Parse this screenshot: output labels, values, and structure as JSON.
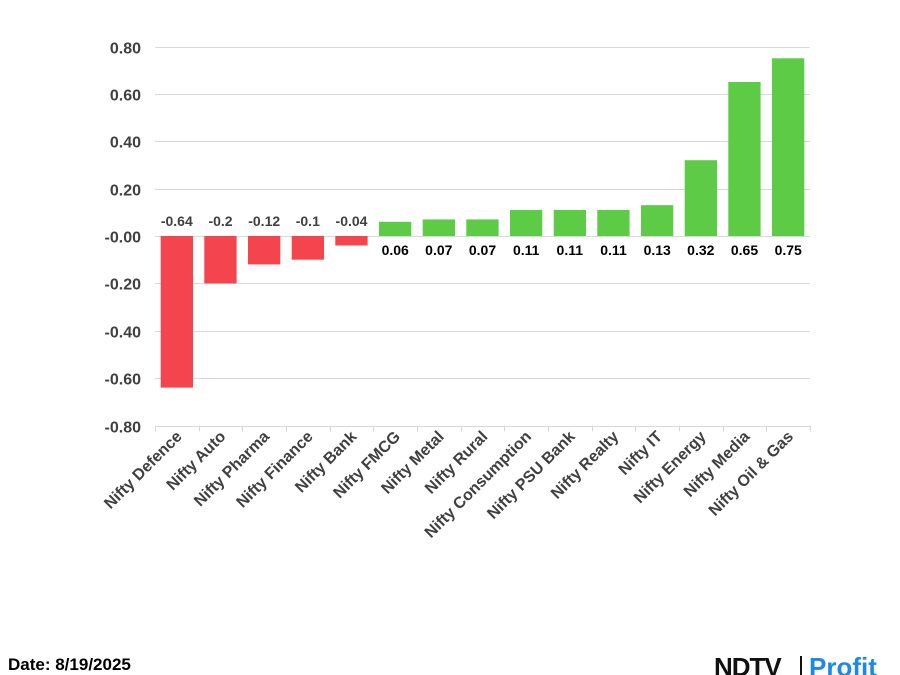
{
  "chart_data": {
    "type": "bar",
    "categories": [
      "Nifty Defence",
      "Nifty Auto",
      "Nifty Pharma",
      "Nifty Finance",
      "Nifty Bank",
      "Nifty FMCG",
      "Nifty Metal",
      "Nifty Rural",
      "Nifty Consumption",
      "Nifty PSU Bank",
      "Nifty Realty",
      "Nifty IT",
      "Nifty Energy",
      "Nifty Media",
      "Nifty Oil & Gas"
    ],
    "values": [
      -0.64,
      -0.2,
      -0.12,
      -0.1,
      -0.04,
      0.06,
      0.07,
      0.07,
      0.11,
      0.11,
      0.11,
      0.13,
      0.32,
      0.65,
      0.75
    ],
    "data_labels": [
      "-0.64",
      "-0.2",
      "-0.12",
      "-0.1",
      "-0.04",
      "0.06",
      "0.07",
      "0.07",
      "0.11",
      "0.11",
      "0.11",
      "0.13",
      "0.32",
      "0.65",
      "0.75"
    ],
    "ylim": [
      -0.8,
      0.8
    ],
    "yticks": [
      0.8,
      0.6,
      0.4,
      0.2,
      0.0,
      -0.2,
      -0.4,
      -0.6,
      -0.8
    ],
    "ytick_labels": [
      "0.80",
      "0.60",
      "0.40",
      "0.20",
      "-0.00",
      "-0.20",
      "-0.40",
      "-0.60",
      "-0.80"
    ],
    "grid": true,
    "colors": {
      "positive": "#5ecb46",
      "negative": "#f4444e",
      "positive_label": "#000000",
      "negative_label": "#404040"
    },
    "title": "",
    "xlabel": "",
    "ylabel": ""
  },
  "footer": {
    "date_text": "Date: 8/19/2025",
    "brand_primary": "NDTV",
    "brand_secondary": "Profit"
  }
}
